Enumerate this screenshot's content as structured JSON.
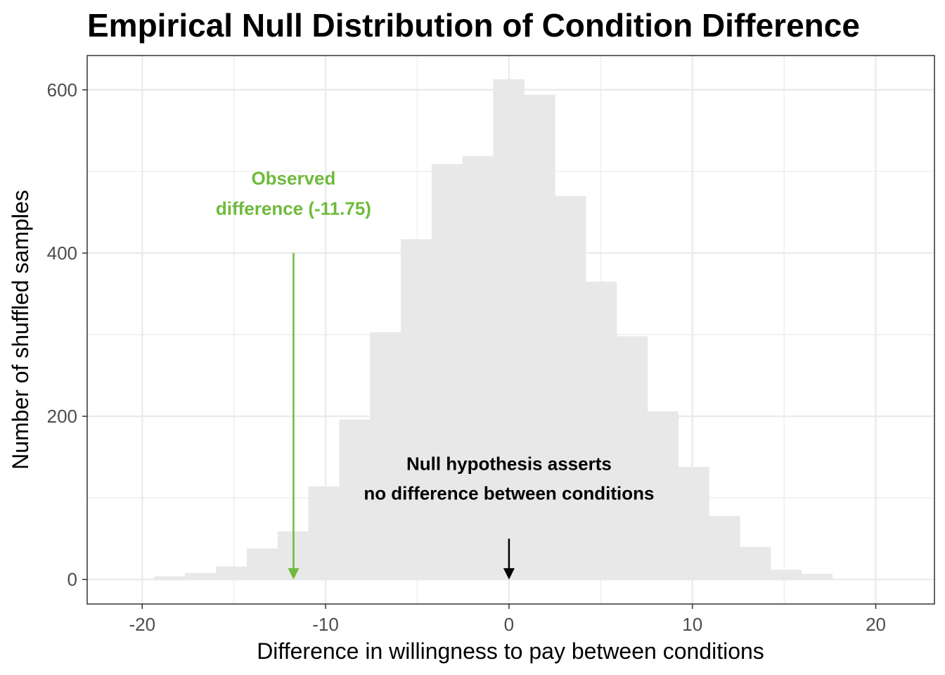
{
  "chart_data": {
    "type": "bar",
    "title": "Empirical Null Distribution of Condition Difference",
    "xlabel": "Difference in willingness to pay between conditions",
    "ylabel": "Number of shuffled samples",
    "xlim": [
      -23,
      23.2
    ],
    "ylim": [
      -30,
      642
    ],
    "x_ticks": [
      -20,
      -10,
      0,
      10,
      20
    ],
    "x_tick_labels": [
      "-20",
      "-10",
      "0",
      "10",
      "20"
    ],
    "y_ticks": [
      0,
      200,
      400,
      600
    ],
    "y_tick_labels": [
      "0",
      "200",
      "400",
      "600"
    ],
    "grid": true,
    "bar_color": "#e8e8e8",
    "bin_width": 1.68,
    "bin_centers": [
      -18.5,
      -16.82,
      -15.14,
      -13.46,
      -11.78,
      -10.1,
      -8.42,
      -6.74,
      -5.06,
      -3.38,
      -1.7,
      -0.02,
      1.66,
      3.34,
      5.02,
      6.7,
      8.38,
      10.06,
      11.74,
      13.42,
      15.1,
      16.78
    ],
    "values": [
      4,
      8,
      16,
      38,
      59,
      114,
      196,
      303,
      417,
      509,
      519,
      613,
      594,
      470,
      365,
      298,
      206,
      138,
      78,
      40,
      12,
      7
    ],
    "annotations": [
      {
        "lines": [
          "Observed",
          "difference (-11.75)"
        ],
        "color": "#6fba3c",
        "text_x": -11.75,
        "text_y": [
          484,
          447
        ],
        "arrow_x": -11.75,
        "arrow_from": 400,
        "arrow_to": 0
      },
      {
        "lines": [
          "Null hypothesis asserts",
          "no difference between conditions"
        ],
        "color": "#000000",
        "text_x": 0,
        "text_y": [
          134,
          98
        ],
        "arrow_x": 0,
        "arrow_from": 50,
        "arrow_to": 0
      }
    ]
  }
}
